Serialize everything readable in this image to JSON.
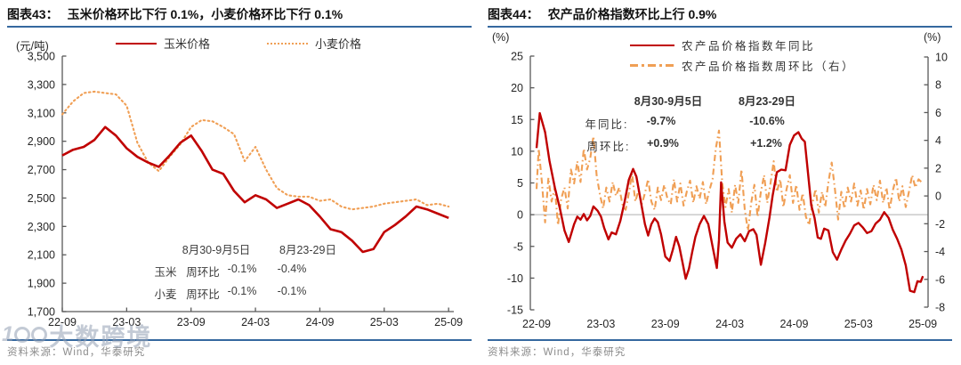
{
  "panels": [
    {
      "title_prefix": "图表43：",
      "title": "玉米价格环比下行 0.1%，小麦价格环比下行 0.1%",
      "source": "资料来源：Wind，华泰研究"
    },
    {
      "title_prefix": "图表44：",
      "title": "农产品价格指数环比上行 0.9%",
      "source": "资料来源：Wind，华泰研究"
    }
  ],
  "watermark": {
    "logo": "100",
    "text": "大数跨境"
  },
  "colors": {
    "red_line": "#c00000",
    "orange_line": "#f09f55",
    "rule_blue": "#35689f",
    "axis_gray": "#595959",
    "zero_line_gray": "#bfbfbf",
    "source_gray": "#8c8c8c"
  },
  "chart_data": [
    {
      "type": "line",
      "title": "玉米价格环比下行 0.1%，小麦价格环比下行 0.1%",
      "unit": "(元/吨)",
      "ylim": [
        1700,
        3500
      ],
      "ytick_step": 200,
      "x_tick_labels": [
        "22-09",
        "23-03",
        "23-09",
        "24-03",
        "24-09",
        "25-03",
        "25-09"
      ],
      "x_months_total": 36,
      "grid": false,
      "series": [
        {
          "key": "corn-price-line",
          "name": "玉米价格",
          "color": "#c00000",
          "style": "solid",
          "width": 2.6,
          "values": [
            2800,
            2840,
            2860,
            2910,
            3000,
            2940,
            2850,
            2790,
            2750,
            2720,
            2800,
            2890,
            2940,
            2830,
            2700,
            2670,
            2550,
            2470,
            2520,
            2490,
            2430,
            2460,
            2490,
            2450,
            2370,
            2280,
            2260,
            2200,
            2120,
            2140,
            2260,
            2310,
            2370,
            2440,
            2420,
            2390,
            2360
          ]
        },
        {
          "key": "wheat-price-line",
          "name": "小麦价格",
          "color": "#f09f55",
          "style": "dotted",
          "width": 2.1,
          "values": [
            3090,
            3180,
            3240,
            3250,
            3240,
            3230,
            3150,
            2890,
            2750,
            2690,
            2790,
            2880,
            3000,
            3050,
            3040,
            3000,
            2950,
            2760,
            2860,
            2700,
            2570,
            2520,
            2510,
            2510,
            2480,
            2490,
            2440,
            2420,
            2430,
            2440,
            2460,
            2470,
            2480,
            2490,
            2450,
            2460,
            2440
          ]
        }
      ],
      "annotation": {
        "headers": [
          "8月30-9月5日",
          "8月23-29日"
        ],
        "rows": [
          {
            "label": "玉米",
            "metric": "周环比",
            "v1": "-0.1%",
            "v2": "-0.4%"
          },
          {
            "label": "小麦",
            "metric": "周环比",
            "v1": "-0.1%",
            "v2": "-0.1%"
          }
        ]
      }
    },
    {
      "type": "line",
      "title": "农产品价格指数环比上行 0.9%",
      "unit_left": "(%)",
      "unit_right": "(%)",
      "ylim_left": [
        -15,
        25
      ],
      "ytick_step_left": 5,
      "ylim_right": [
        -8,
        10
      ],
      "ytick_step_right": 2,
      "x_tick_labels": [
        "22-09",
        "23-03",
        "23-09",
        "24-03",
        "24-09",
        "25-03",
        "25-09"
      ],
      "x_months_total": 36,
      "zero_gridline": true,
      "series": [
        {
          "key": "yoy-line",
          "name": "农产品价格指数年同比",
          "axis": "left",
          "color": "#c00000",
          "style": "solid",
          "width": 2.4,
          "points": [
            [
              0,
              10.5
            ],
            [
              0.3,
              16
            ],
            [
              0.8,
              13
            ],
            [
              1.2,
              8.5
            ],
            [
              1.7,
              4.3
            ],
            [
              2.2,
              0.8
            ],
            [
              2.6,
              -2.5
            ],
            [
              3,
              -4.3
            ],
            [
              3.5,
              -1.5
            ],
            [
              3.8,
              -0.3
            ],
            [
              4.1,
              -0.8
            ],
            [
              4.4,
              0.1
            ],
            [
              4.7,
              -0.9
            ],
            [
              5,
              -0.2
            ],
            [
              5.3,
              1.3
            ],
            [
              5.7,
              0.6
            ],
            [
              6,
              -0.3
            ],
            [
              6.3,
              -2.1
            ],
            [
              6.7,
              -3.9
            ],
            [
              7,
              -2.8
            ],
            [
              7.4,
              -3.1
            ],
            [
              7.8,
              -1
            ],
            [
              8.2,
              2
            ],
            [
              8.6,
              5.5
            ],
            [
              9,
              7.2
            ],
            [
              9.3,
              6
            ],
            [
              9.6,
              3.2
            ],
            [
              9.8,
              1.3
            ],
            [
              10.1,
              -1.5
            ],
            [
              10.4,
              -3.3
            ],
            [
              10.7,
              -1.5
            ],
            [
              11,
              -0.6
            ],
            [
              11.3,
              -1.2
            ],
            [
              11.6,
              -3.1
            ],
            [
              12,
              -6.6
            ],
            [
              12.4,
              -7.3
            ],
            [
              12.7,
              -5.5
            ],
            [
              13,
              -3.5
            ],
            [
              13.3,
              -5
            ],
            [
              13.6,
              -7.5
            ],
            [
              13.9,
              -10.1
            ],
            [
              14.2,
              -8.5
            ],
            [
              14.5,
              -5.9
            ],
            [
              14.8,
              -3.5
            ],
            [
              15.2,
              -1.5
            ],
            [
              15.6,
              -0.2
            ],
            [
              16,
              -1.5
            ],
            [
              16.4,
              -5
            ],
            [
              16.8,
              -8.4
            ],
            [
              17,
              -4
            ],
            [
              17.2,
              5.1
            ],
            [
              17.5,
              -1.1
            ],
            [
              17.8,
              -4.4
            ],
            [
              18.2,
              -5.2
            ],
            [
              18.6,
              -3.8
            ],
            [
              19,
              -3.1
            ],
            [
              19.4,
              -4.2
            ],
            [
              19.8,
              -2.6
            ],
            [
              20.2,
              -2.3
            ],
            [
              20.5,
              -3.2
            ],
            [
              20.9,
              -7.9
            ],
            [
              21.3,
              -4.5
            ],
            [
              21.7,
              -0.5
            ],
            [
              22,
              3
            ],
            [
              22.4,
              6.7
            ],
            [
              22.8,
              7.1
            ],
            [
              23.2,
              7
            ],
            [
              23.6,
              11
            ],
            [
              24,
              12.5
            ],
            [
              24.4,
              13
            ],
            [
              24.7,
              12
            ],
            [
              25,
              11.5
            ],
            [
              25.3,
              6.5
            ],
            [
              25.6,
              1.5
            ],
            [
              25.9,
              -0.5
            ],
            [
              26.2,
              -3.6
            ],
            [
              26.5,
              -3.8
            ],
            [
              26.8,
              -2.2
            ],
            [
              27.2,
              -2.5
            ],
            [
              27.6,
              -5.9
            ],
            [
              28,
              -7.1
            ],
            [
              28.4,
              -5.5
            ],
            [
              28.8,
              -4.1
            ],
            [
              29.2,
              -3
            ],
            [
              29.6,
              -1.7
            ],
            [
              30,
              -1.3
            ],
            [
              30.4,
              -2
            ],
            [
              30.8,
              -2.9
            ],
            [
              31.2,
              -2.6
            ],
            [
              31.6,
              -1.4
            ],
            [
              32,
              -0.8
            ],
            [
              32.4,
              0.4
            ],
            [
              32.8,
              -0.5
            ],
            [
              33.2,
              -2.4
            ],
            [
              33.6,
              -3.8
            ],
            [
              34,
              -5.5
            ],
            [
              34.4,
              -8
            ],
            [
              34.8,
              -12
            ],
            [
              35.2,
              -12.2
            ],
            [
              35.5,
              -10.5
            ],
            [
              35.8,
              -10.6
            ],
            [
              36,
              -9.7
            ]
          ]
        },
        {
          "key": "wow-line",
          "name": "农产品价格指数周环比（右）",
          "axis": "right",
          "color": "#f09f55",
          "style": "dashdot",
          "width": 2.1,
          "points": [
            [
              0,
              0.5
            ],
            [
              0.2,
              3.4
            ],
            [
              0.5,
              1
            ],
            [
              0.8,
              -1.9
            ],
            [
              1.1,
              1.3
            ],
            [
              1.4,
              -0.4
            ],
            [
              1.7,
              0.6
            ],
            [
              2,
              -2.1
            ],
            [
              2.3,
              -0.2
            ],
            [
              2.6,
              0.6
            ],
            [
              2.9,
              -0.9
            ],
            [
              3.2,
              1.9
            ],
            [
              3.5,
              0.9
            ],
            [
              3.8,
              2.5
            ],
            [
              4.1,
              1
            ],
            [
              4.4,
              3.4
            ],
            [
              4.7,
              1.9
            ],
            [
              5,
              2.7
            ],
            [
              5.3,
              4.3
            ],
            [
              5.6,
              1.5
            ],
            [
              5.9,
              0.1
            ],
            [
              6.2,
              -0.9
            ],
            [
              6.5,
              0.6
            ],
            [
              6.8,
              -0.4
            ],
            [
              7.1,
              1
            ],
            [
              7.4,
              0
            ],
            [
              7.7,
              0.6
            ],
            [
              8,
              -0.6
            ],
            [
              8.3,
              -1
            ],
            [
              8.6,
              0.2
            ],
            [
              8.9,
              1.6
            ],
            [
              9.2,
              -0.4
            ],
            [
              9.5,
              0.4
            ],
            [
              9.8,
              -0.6
            ],
            [
              10.1,
              0.2
            ],
            [
              10.4,
              1.2
            ],
            [
              10.7,
              -0.4
            ],
            [
              11,
              -1
            ],
            [
              11.3,
              0.6
            ],
            [
              11.6,
              -0.3
            ],
            [
              11.9,
              0.8
            ],
            [
              12.2,
              -0.2
            ],
            [
              12.5,
              -0.6
            ],
            [
              12.8,
              1.2
            ],
            [
              13.1,
              -0.4
            ],
            [
              13.4,
              0.9
            ],
            [
              13.7,
              -0.7
            ],
            [
              14,
              0.3
            ],
            [
              14.3,
              1.1
            ],
            [
              14.6,
              -0.5
            ],
            [
              14.9,
              0.7
            ],
            [
              15.2,
              -0.2
            ],
            [
              15.5,
              1
            ],
            [
              15.8,
              -0.6
            ],
            [
              16.1,
              0.4
            ],
            [
              16.4,
              1.2
            ],
            [
              16.7,
              3.4
            ],
            [
              17,
              4.7
            ],
            [
              17.3,
              1
            ],
            [
              17.6,
              -0.8
            ],
            [
              17.9,
              0.5
            ],
            [
              18.2,
              -1.2
            ],
            [
              18.5,
              0.8
            ],
            [
              18.8,
              -0.5
            ],
            [
              19.1,
              1.9
            ],
            [
              19.4,
              -1
            ],
            [
              19.7,
              -2.5
            ],
            [
              20,
              -0.5
            ],
            [
              20.3,
              0.8
            ],
            [
              20.6,
              -1.5
            ],
            [
              20.9,
              0.3
            ],
            [
              21.2,
              1.5
            ],
            [
              21.5,
              -0.5
            ],
            [
              21.8,
              0.9
            ],
            [
              22.1,
              2.5
            ],
            [
              22.4,
              0.3
            ],
            [
              22.7,
              1.2
            ],
            [
              23,
              -0.8
            ],
            [
              23.3,
              0.5
            ],
            [
              23.6,
              1.5
            ],
            [
              23.9,
              -0.5
            ],
            [
              24.2,
              0.8
            ],
            [
              24.5,
              -1
            ],
            [
              24.8,
              0.2
            ],
            [
              25.1,
              -1.5
            ],
            [
              25.4,
              -2.1
            ],
            [
              25.7,
              -0.6
            ],
            [
              26,
              0.5
            ],
            [
              26.3,
              -1.2
            ],
            [
              26.6,
              0.3
            ],
            [
              26.9,
              -0.8
            ],
            [
              27.2,
              1
            ],
            [
              27.5,
              2.4
            ],
            [
              27.8,
              0.5
            ],
            [
              28.1,
              -1.7
            ],
            [
              28.4,
              0.3
            ],
            [
              28.7,
              -0.9
            ],
            [
              29,
              0.6
            ],
            [
              29.3,
              -0.4
            ],
            [
              29.6,
              0.9
            ],
            [
              29.9,
              -0.7
            ],
            [
              30.2,
              0.4
            ],
            [
              30.5,
              -1
            ],
            [
              30.8,
              0.5
            ],
            [
              31.1,
              -0.6
            ],
            [
              31.4,
              0.8
            ],
            [
              31.7,
              -0.3
            ],
            [
              32,
              1.1
            ],
            [
              32.3,
              -0.5
            ],
            [
              32.6,
              0.6
            ],
            [
              32.9,
              -1
            ],
            [
              33.2,
              0.4
            ],
            [
              33.5,
              1.3
            ],
            [
              33.8,
              -0.4
            ],
            [
              34.1,
              0.7
            ],
            [
              34.4,
              -0.8
            ],
            [
              34.7,
              0.3
            ],
            [
              35,
              1.5
            ],
            [
              35.3,
              0.6
            ],
            [
              35.6,
              1.2
            ],
            [
              36,
              0.9
            ]
          ]
        }
      ],
      "annotation": {
        "headers": [
          "8月30-9月5日",
          "8月23-29日"
        ],
        "rows": [
          {
            "label": "年同比:",
            "v1": "-9.7%",
            "v2": "-10.6%"
          },
          {
            "label": "周环比:",
            "v1": "+0.9%",
            "v2": "+1.2%"
          }
        ]
      }
    }
  ]
}
